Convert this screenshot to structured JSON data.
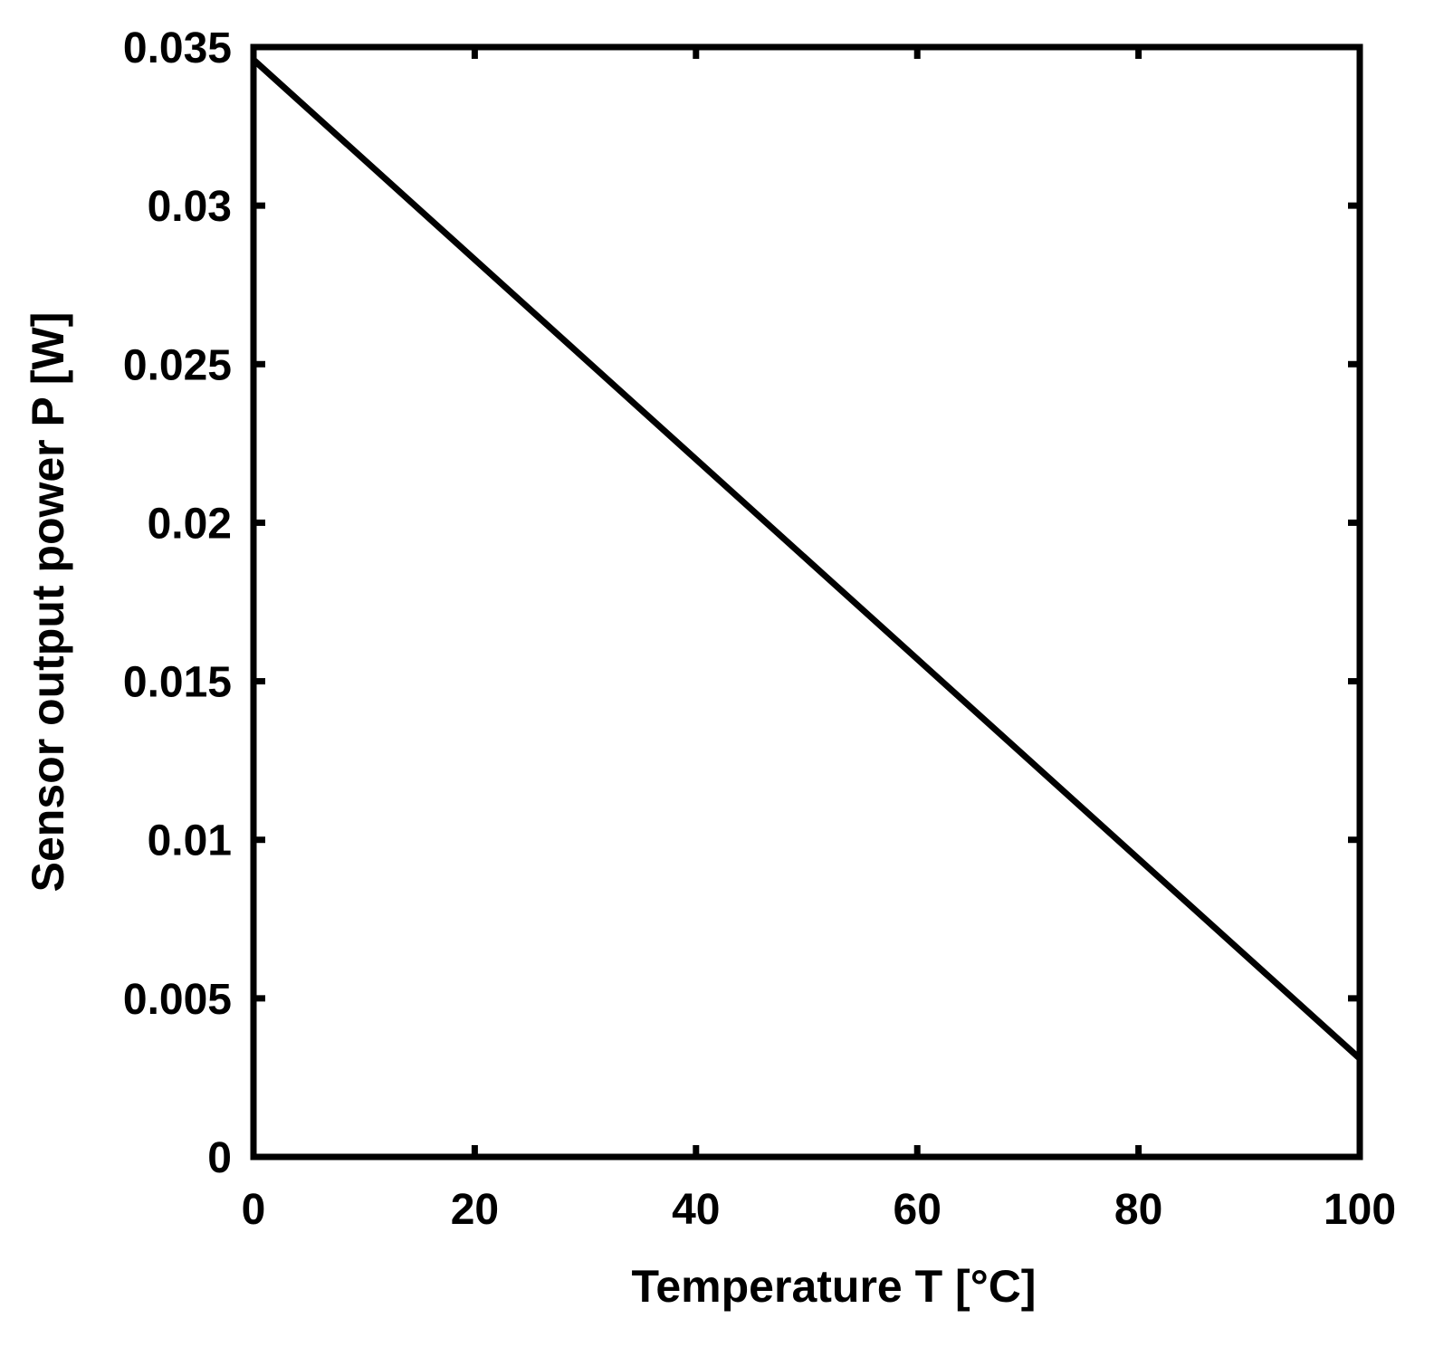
{
  "chart_data": {
    "type": "line",
    "xlabel": "Temperature T [°C]",
    "ylabel": "Sensor output power P [W]",
    "xlim": [
      0,
      100
    ],
    "ylim": [
      0,
      0.035
    ],
    "xticks": [
      0,
      20,
      40,
      60,
      80,
      100
    ],
    "xtick_labels": [
      "0",
      "20",
      "40",
      "60",
      "80",
      "100"
    ],
    "yticks": [
      0,
      0.005,
      0.01,
      0.015,
      0.02,
      0.025,
      0.03,
      0.035
    ],
    "ytick_labels": [
      "0",
      "0.005",
      "0.01",
      "0.015",
      "0.02",
      "0.025",
      "0.03",
      "0.035"
    ],
    "grid": false,
    "series": [
      {
        "x": [
          0,
          100
        ],
        "y": [
          0.0346,
          0.0031
        ],
        "color": "#000000"
      }
    ]
  }
}
